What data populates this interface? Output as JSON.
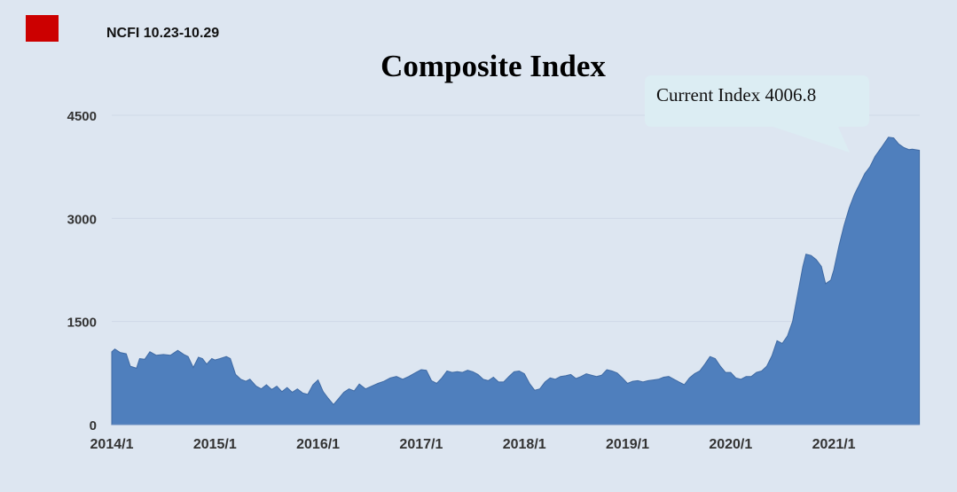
{
  "legend": {
    "label": "NCFI 10.23-10.29",
    "color": "#cc0000"
  },
  "callout": {
    "text": "Current Index 4006.8",
    "fill": "#dcedf3"
  },
  "chart_data": {
    "type": "area",
    "title": "Composite Index",
    "xlabel": "",
    "ylabel": "",
    "series": [
      {
        "color": "#4f7fbd"
      }
    ],
    "ylim": [
      0,
      4500
    ],
    "y_ticks": [
      0,
      1500,
      3000,
      4500
    ],
    "x_tick_labels": [
      "2014/1",
      "2015/1",
      "2016/1",
      "2017/1",
      "2018/1",
      "2019/1",
      "2020/1",
      "2021/1"
    ],
    "xlim": [
      2014.0,
      2021.83
    ],
    "grid": true,
    "points": [
      [
        2014.0,
        1060
      ],
      [
        2014.03,
        1100
      ],
      [
        2014.08,
        1050
      ],
      [
        2014.14,
        1030
      ],
      [
        2014.18,
        850
      ],
      [
        2014.24,
        820
      ],
      [
        2014.27,
        960
      ],
      [
        2014.32,
        950
      ],
      [
        2014.37,
        1060
      ],
      [
        2014.43,
        1010
      ],
      [
        2014.5,
        1020
      ],
      [
        2014.57,
        1010
      ],
      [
        2014.64,
        1080
      ],
      [
        2014.7,
        1020
      ],
      [
        2014.74,
        990
      ],
      [
        2014.79,
        830
      ],
      [
        2014.84,
        980
      ],
      [
        2014.88,
        960
      ],
      [
        2014.92,
        880
      ],
      [
        2014.97,
        960
      ],
      [
        2015.0,
        940
      ],
      [
        2015.05,
        960
      ],
      [
        2015.11,
        990
      ],
      [
        2015.15,
        960
      ],
      [
        2015.2,
        730
      ],
      [
        2015.25,
        660
      ],
      [
        2015.3,
        630
      ],
      [
        2015.34,
        660
      ],
      [
        2015.4,
        560
      ],
      [
        2015.45,
        520
      ],
      [
        2015.5,
        580
      ],
      [
        2015.55,
        510
      ],
      [
        2015.6,
        560
      ],
      [
        2015.65,
        480
      ],
      [
        2015.7,
        540
      ],
      [
        2015.75,
        470
      ],
      [
        2015.8,
        520
      ],
      [
        2015.85,
        460
      ],
      [
        2015.9,
        440
      ],
      [
        2015.95,
        580
      ],
      [
        2016.0,
        650
      ],
      [
        2016.05,
        480
      ],
      [
        2016.1,
        380
      ],
      [
        2016.15,
        290
      ],
      [
        2016.2,
        380
      ],
      [
        2016.25,
        470
      ],
      [
        2016.3,
        520
      ],
      [
        2016.35,
        490
      ],
      [
        2016.4,
        590
      ],
      [
        2016.46,
        520
      ],
      [
        2016.52,
        560
      ],
      [
        2016.58,
        600
      ],
      [
        2016.64,
        630
      ],
      [
        2016.7,
        680
      ],
      [
        2016.76,
        700
      ],
      [
        2016.82,
        660
      ],
      [
        2016.88,
        700
      ],
      [
        2016.95,
        760
      ],
      [
        2017.0,
        800
      ],
      [
        2017.05,
        790
      ],
      [
        2017.1,
        640
      ],
      [
        2017.15,
        600
      ],
      [
        2017.2,
        680
      ],
      [
        2017.25,
        780
      ],
      [
        2017.3,
        760
      ],
      [
        2017.35,
        770
      ],
      [
        2017.4,
        760
      ],
      [
        2017.45,
        790
      ],
      [
        2017.5,
        770
      ],
      [
        2017.55,
        730
      ],
      [
        2017.6,
        660
      ],
      [
        2017.65,
        640
      ],
      [
        2017.7,
        690
      ],
      [
        2017.75,
        620
      ],
      [
        2017.8,
        620
      ],
      [
        2017.85,
        700
      ],
      [
        2017.9,
        770
      ],
      [
        2017.95,
        780
      ],
      [
        2018.0,
        740
      ],
      [
        2018.05,
        600
      ],
      [
        2018.1,
        500
      ],
      [
        2018.15,
        520
      ],
      [
        2018.2,
        620
      ],
      [
        2018.25,
        680
      ],
      [
        2018.3,
        660
      ],
      [
        2018.35,
        700
      ],
      [
        2018.4,
        710
      ],
      [
        2018.45,
        730
      ],
      [
        2018.5,
        670
      ],
      [
        2018.55,
        700
      ],
      [
        2018.6,
        740
      ],
      [
        2018.65,
        720
      ],
      [
        2018.7,
        700
      ],
      [
        2018.75,
        720
      ],
      [
        2018.8,
        800
      ],
      [
        2018.85,
        780
      ],
      [
        2018.9,
        750
      ],
      [
        2018.95,
        680
      ],
      [
        2019.0,
        600
      ],
      [
        2019.05,
        630
      ],
      [
        2019.1,
        640
      ],
      [
        2019.15,
        620
      ],
      [
        2019.2,
        640
      ],
      [
        2019.25,
        650
      ],
      [
        2019.3,
        660
      ],
      [
        2019.35,
        690
      ],
      [
        2019.4,
        700
      ],
      [
        2019.45,
        660
      ],
      [
        2019.5,
        620
      ],
      [
        2019.55,
        580
      ],
      [
        2019.6,
        680
      ],
      [
        2019.65,
        740
      ],
      [
        2019.7,
        780
      ],
      [
        2019.75,
        880
      ],
      [
        2019.8,
        990
      ],
      [
        2019.85,
        960
      ],
      [
        2019.9,
        850
      ],
      [
        2019.95,
        760
      ],
      [
        2020.0,
        760
      ],
      [
        2020.05,
        680
      ],
      [
        2020.1,
        660
      ],
      [
        2020.15,
        700
      ],
      [
        2020.2,
        700
      ],
      [
        2020.25,
        760
      ],
      [
        2020.3,
        780
      ],
      [
        2020.35,
        850
      ],
      [
        2020.4,
        1000
      ],
      [
        2020.45,
        1220
      ],
      [
        2020.5,
        1180
      ],
      [
        2020.55,
        1290
      ],
      [
        2020.6,
        1500
      ],
      [
        2020.65,
        1900
      ],
      [
        2020.7,
        2300
      ],
      [
        2020.73,
        2480
      ],
      [
        2020.78,
        2460
      ],
      [
        2020.83,
        2400
      ],
      [
        2020.88,
        2300
      ],
      [
        2020.92,
        2050
      ],
      [
        2020.97,
        2100
      ],
      [
        2021.0,
        2250
      ],
      [
        2021.05,
        2600
      ],
      [
        2021.1,
        2900
      ],
      [
        2021.15,
        3150
      ],
      [
        2021.2,
        3350
      ],
      [
        2021.25,
        3500
      ],
      [
        2021.3,
        3650
      ],
      [
        2021.35,
        3750
      ],
      [
        2021.4,
        3900
      ],
      [
        2021.47,
        4050
      ],
      [
        2021.53,
        4180
      ],
      [
        2021.58,
        4170
      ],
      [
        2021.63,
        4080
      ],
      [
        2021.68,
        4030
      ],
      [
        2021.73,
        4000
      ],
      [
        2021.76,
        4006.8
      ],
      [
        2021.83,
        3990
      ]
    ]
  }
}
